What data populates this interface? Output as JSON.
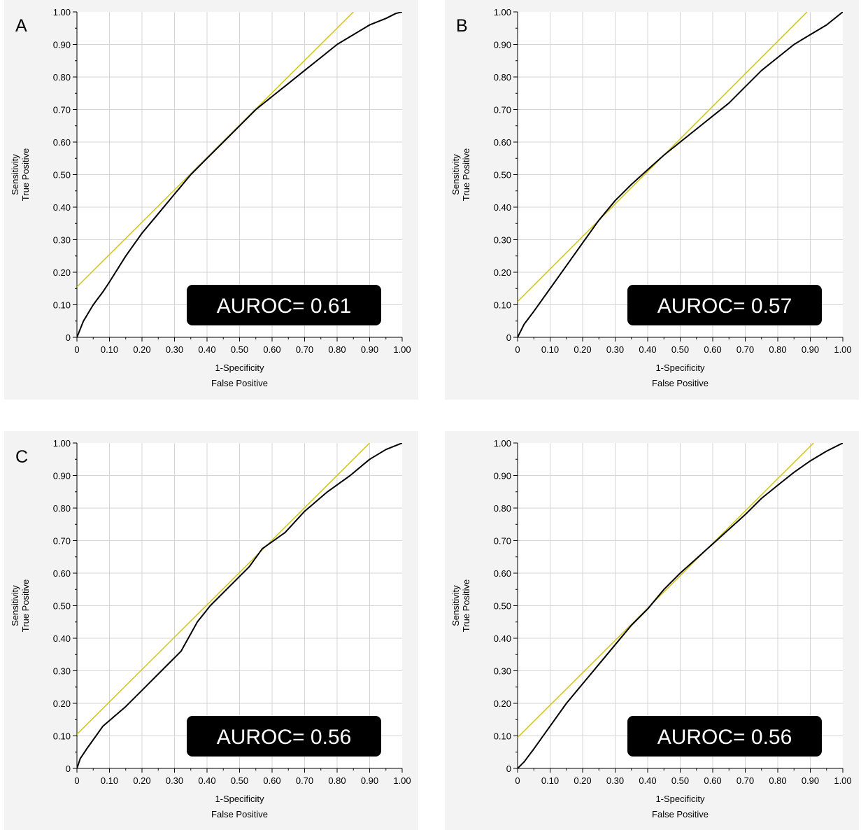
{
  "chart_data": [
    {
      "type": "line",
      "panel_label": "A",
      "xlabel": [
        "1-Specificity",
        "False Positive"
      ],
      "ylabel": [
        "Sensitivity",
        "True Positive"
      ],
      "xlim": [
        0,
        1
      ],
      "ylim": [
        0,
        1
      ],
      "x_ticks": [
        "0",
        "0.10",
        "0.20",
        "0.30",
        "0.40",
        "0.50",
        "0.60",
        "0.70",
        "0.80",
        "0.90",
        "1.00"
      ],
      "y_ticks": [
        "0",
        "0.10",
        "0.20",
        "0.30",
        "0.40",
        "0.50",
        "0.60",
        "0.70",
        "0.80",
        "0.90",
        "1.00"
      ],
      "grid": true,
      "annotation": "AUROC= 0.61",
      "series": [
        {
          "color": "#000000",
          "x": [
            0,
            0.02,
            0.05,
            0.08,
            0.1,
            0.15,
            0.2,
            0.25,
            0.3,
            0.35,
            0.4,
            0.45,
            0.5,
            0.55,
            0.6,
            0.65,
            0.7,
            0.75,
            0.8,
            0.85,
            0.9,
            0.95,
            0.98,
            1.0
          ],
          "y": [
            0,
            0.05,
            0.1,
            0.14,
            0.17,
            0.25,
            0.32,
            0.38,
            0.44,
            0.5,
            0.55,
            0.6,
            0.65,
            0.7,
            0.74,
            0.78,
            0.82,
            0.86,
            0.9,
            0.93,
            0.96,
            0.98,
            0.995,
            1.0
          ]
        },
        {
          "color": "#d4c414",
          "x": [
            0,
            0.85
          ],
          "y": [
            0.155,
            1.0
          ]
        }
      ]
    },
    {
      "type": "line",
      "panel_label": "B",
      "xlabel": [
        "1-Specificity",
        "False Positive"
      ],
      "ylabel": [
        "Sensitivity",
        "True Positive"
      ],
      "xlim": [
        0,
        1
      ],
      "ylim": [
        0,
        1
      ],
      "x_ticks": [
        "0",
        "0.10",
        "0.20",
        "0.30",
        "0.40",
        "0.50",
        "0.60",
        "0.70",
        "0.80",
        "0.90",
        "1.00"
      ],
      "y_ticks": [
        "0",
        "0.10",
        "0.20",
        "0.30",
        "0.40",
        "0.50",
        "0.60",
        "0.70",
        "0.80",
        "0.90",
        "1.00"
      ],
      "grid": true,
      "annotation": "AUROC= 0.57",
      "series": [
        {
          "color": "#000000",
          "x": [
            0,
            0.02,
            0.05,
            0.1,
            0.15,
            0.2,
            0.25,
            0.3,
            0.35,
            0.4,
            0.45,
            0.5,
            0.55,
            0.6,
            0.65,
            0.7,
            0.75,
            0.8,
            0.85,
            0.9,
            0.95,
            1.0
          ],
          "y": [
            0,
            0.04,
            0.08,
            0.15,
            0.22,
            0.29,
            0.36,
            0.42,
            0.47,
            0.515,
            0.56,
            0.6,
            0.64,
            0.68,
            0.72,
            0.77,
            0.82,
            0.86,
            0.9,
            0.93,
            0.96,
            1.0
          ]
        },
        {
          "color": "#d4c414",
          "x": [
            0,
            0.89
          ],
          "y": [
            0.11,
            1.0
          ]
        }
      ]
    },
    {
      "type": "line",
      "panel_label": "C",
      "xlabel": [
        "1-Specificity",
        "False Positive"
      ],
      "ylabel": [
        "Sensitivity",
        "True Positive"
      ],
      "xlim": [
        0,
        1
      ],
      "ylim": [
        0,
        1
      ],
      "x_ticks": [
        "0",
        "0.10",
        "0.20",
        "0.30",
        "0.40",
        "0.50",
        "0.60",
        "0.70",
        "0.80",
        "0.90",
        "1.00"
      ],
      "y_ticks": [
        "0",
        "0.10",
        "0.20",
        "0.30",
        "0.40",
        "0.50",
        "0.60",
        "0.70",
        "0.80",
        "0.90",
        "1.00"
      ],
      "grid": true,
      "annotation": "AUROC= 0.56",
      "series": [
        {
          "color": "#000000",
          "x": [
            0,
            0.01,
            0.03,
            0.08,
            0.15,
            0.2,
            0.26,
            0.32,
            0.37,
            0.41,
            0.5,
            0.53,
            0.57,
            0.64,
            0.7,
            0.77,
            0.84,
            0.9,
            0.95,
            1.0
          ],
          "y": [
            0,
            0.03,
            0.06,
            0.13,
            0.19,
            0.24,
            0.3,
            0.36,
            0.45,
            0.5,
            0.59,
            0.62,
            0.675,
            0.725,
            0.79,
            0.85,
            0.9,
            0.95,
            0.98,
            1.0
          ]
        },
        {
          "color": "#d4c414",
          "x": [
            0,
            0.9
          ],
          "y": [
            0.105,
            1.0
          ]
        }
      ]
    },
    {
      "type": "line",
      "panel_label": "",
      "xlabel": [
        "1-Specificity",
        "False Positive"
      ],
      "ylabel": [
        "Sensitivity",
        "True Positive"
      ],
      "xlim": [
        0,
        1
      ],
      "ylim": [
        0,
        1
      ],
      "x_ticks": [
        "0",
        "0.10",
        "0.20",
        "0.30",
        "0.40",
        "0.50",
        "0.60",
        "0.70",
        "0.80",
        "0.90",
        "1.00"
      ],
      "y_ticks": [
        "0",
        "0.10",
        "0.20",
        "0.30",
        "0.40",
        "0.50",
        "0.60",
        "0.70",
        "0.80",
        "0.90",
        "1.00"
      ],
      "grid": true,
      "annotation": "AUROC= 0.56",
      "series": [
        {
          "color": "#000000",
          "x": [
            0,
            0.02,
            0.05,
            0.1,
            0.15,
            0.2,
            0.25,
            0.3,
            0.35,
            0.4,
            0.45,
            0.5,
            0.55,
            0.6,
            0.65,
            0.7,
            0.75,
            0.8,
            0.85,
            0.9,
            0.95,
            1.0
          ],
          "y": [
            0,
            0.02,
            0.06,
            0.13,
            0.2,
            0.26,
            0.32,
            0.38,
            0.44,
            0.49,
            0.55,
            0.6,
            0.645,
            0.69,
            0.735,
            0.78,
            0.83,
            0.87,
            0.91,
            0.945,
            0.975,
            1.0
          ]
        },
        {
          "color": "#d4c414",
          "x": [
            0,
            0.91
          ],
          "y": [
            0.095,
            1.0
          ]
        }
      ]
    }
  ]
}
